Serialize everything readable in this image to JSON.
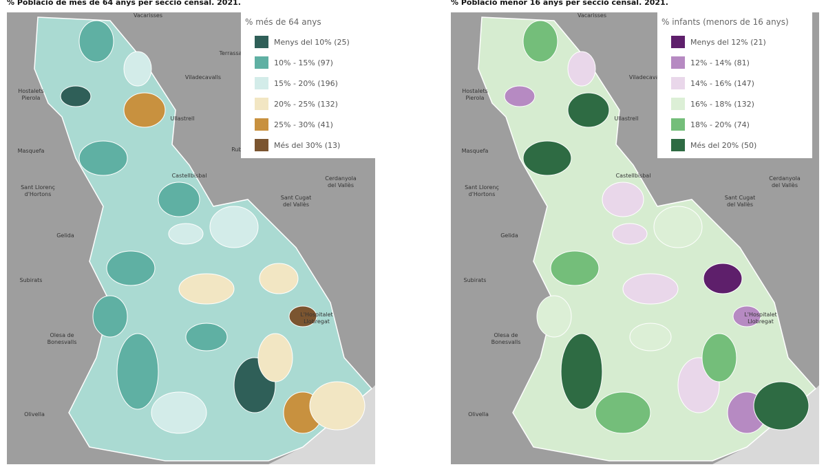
{
  "maps": [
    {
      "title": "% Població de més de 64 anys per secció censal. 2021.",
      "legend": {
        "title": "% més de 64 anys",
        "items": [
          {
            "label": "Menys del 10% (25)",
            "color": "#2f5f58"
          },
          {
            "label": "10% - 15% (97)",
            "color": "#5fb0a3"
          },
          {
            "label": "15% - 20% (196)",
            "color": "#d3ece9"
          },
          {
            "label": "20% - 25% (132)",
            "color": "#f2e6c3"
          },
          {
            "label": "25% - 30% (41)",
            "color": "#c8913f"
          },
          {
            "label": "Més del 30% (13)",
            "color": "#7b5530"
          }
        ]
      }
    },
    {
      "title": "% Població menor 16 anys per secció censal. 2021.",
      "legend": {
        "title": "% infants (menors de 16 anys)",
        "items": [
          {
            "label": "Menys del 12% (21)",
            "color": "#5e1f6b"
          },
          {
            "label": "12% - 14% (81)",
            "color": "#b68ac2"
          },
          {
            "label": "14% - 16% (147)",
            "color": "#e9d7ea"
          },
          {
            "label": "16% - 18% (132)",
            "color": "#dcefd6"
          },
          {
            "label": "18% - 20% (74)",
            "color": "#74be7a"
          },
          {
            "label": "Més del 20% (50)",
            "color": "#2e6b43"
          }
        ]
      }
    }
  ],
  "places": [
    [
      "Vacarisses"
    ],
    [
      "Terrassa"
    ],
    [
      "Viladecavalls"
    ],
    [
      "Hostalets",
      "Pierola"
    ],
    [
      "Ullastrell"
    ],
    [
      "Masquefa"
    ],
    [
      "Rubí"
    ],
    [
      "Castellbisbal"
    ],
    [
      "Cerdanyola",
      "del Vallès"
    ],
    [
      "Sant Llorenç",
      "d'Hortons"
    ],
    [
      "Sant Cugat",
      "del Vallès"
    ],
    [
      "Gelida"
    ],
    [
      "Subirats"
    ],
    [
      "L'Hospitalet",
      "Llobregat"
    ],
    [
      "Olesa de",
      "Bonesvalls"
    ],
    [
      "Olivella"
    ]
  ]
}
